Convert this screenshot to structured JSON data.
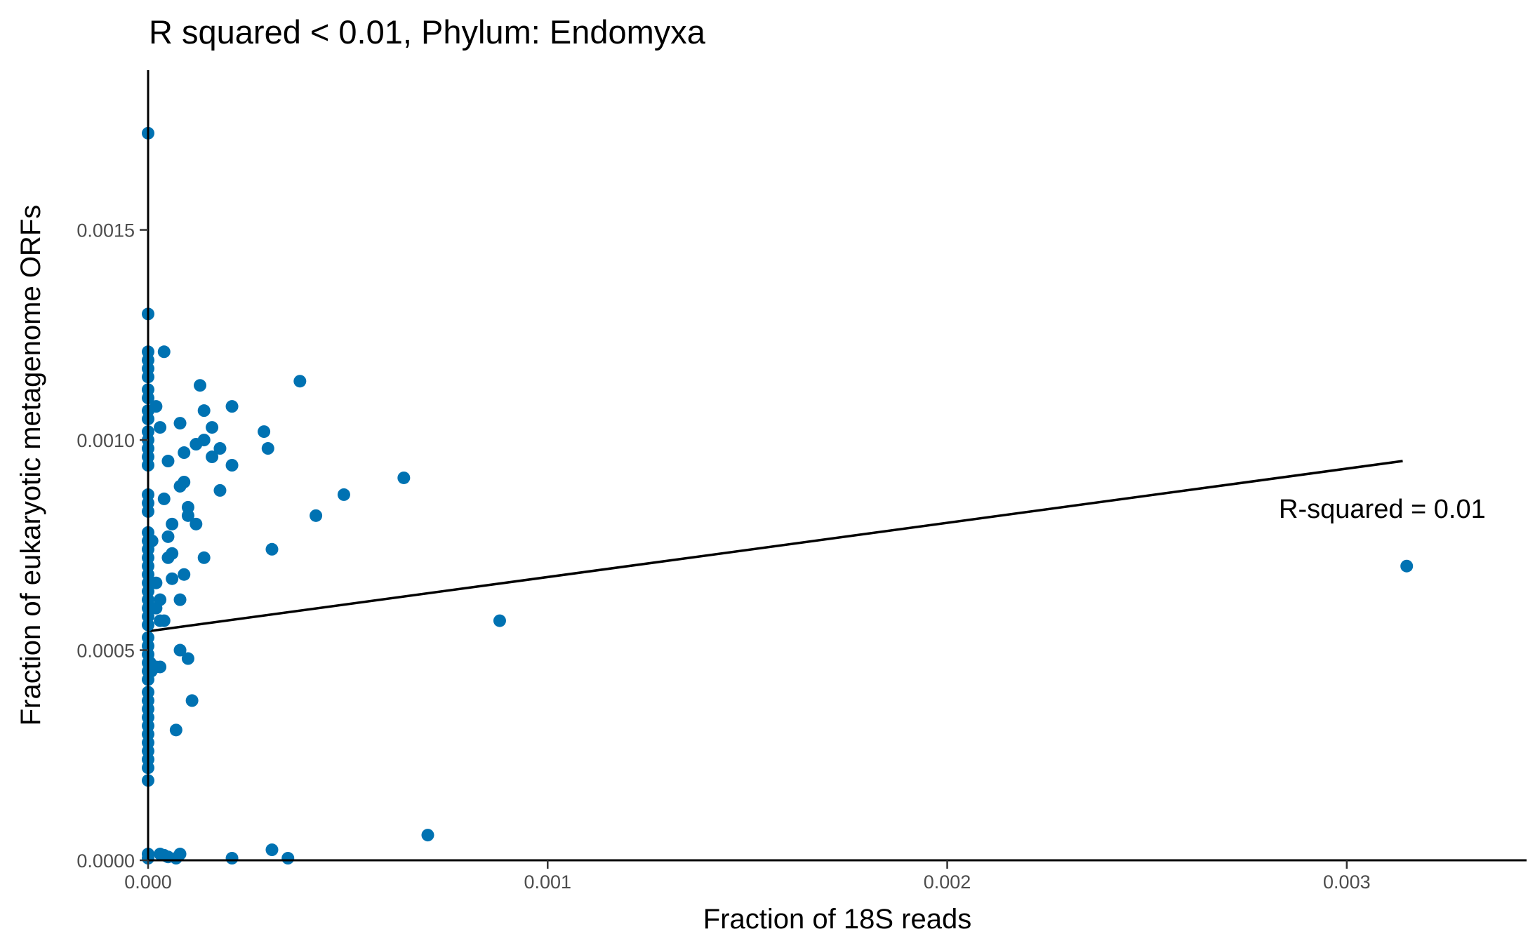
{
  "chart_data": {
    "type": "scatter",
    "title": "R squared < 0.01, Phylum:  Endomyxa",
    "xlabel": "Fraction of 18S reads",
    "ylabel": "Fraction of eukaryotic metagenome ORFs",
    "xlim": [
      0,
      0.00345
    ],
    "ylim": [
      0,
      0.00188
    ],
    "x_ticks": [
      0,
      0.001,
      0.002,
      0.003
    ],
    "x_tick_labels": [
      "0.000",
      "0.001",
      "0.002",
      "0.003"
    ],
    "y_ticks": [
      0,
      0.0005,
      0.001,
      0.0015
    ],
    "y_tick_labels": [
      "0.0000",
      "0.0005",
      "0.0010",
      "0.0015"
    ],
    "grid": false,
    "point_color": "#0072B2",
    "fit_line": {
      "x": [
        0,
        0.00314
      ],
      "y": [
        0.000545,
        0.00095
      ],
      "color": "#000000"
    },
    "annotation": {
      "text": "R-squared =  0.01",
      "x": 0.00283,
      "y": 0.000815
    },
    "points": [
      [
        0,
        0.00173
      ],
      [
        0,
        0.0013
      ],
      [
        0,
        0.00121
      ],
      [
        0,
        0.00119
      ],
      [
        0,
        0.00117
      ],
      [
        0,
        0.00115
      ],
      [
        0,
        0.00112
      ],
      [
        0,
        0.0011
      ],
      [
        0,
        0.00107
      ],
      [
        0,
        0.00105
      ],
      [
        0,
        0.00102
      ],
      [
        0,
        0.001
      ],
      [
        0,
        0.00098
      ],
      [
        0,
        0.00096
      ],
      [
        0,
        0.00094
      ],
      [
        0,
        0.00087
      ],
      [
        0,
        0.00085
      ],
      [
        0,
        0.00083
      ],
      [
        0,
        0.00078
      ],
      [
        0,
        0.00076
      ],
      [
        0,
        0.00074
      ],
      [
        0,
        0.00072
      ],
      [
        0,
        0.0007
      ],
      [
        0,
        0.00068
      ],
      [
        0,
        0.00066
      ],
      [
        0,
        0.00064
      ],
      [
        0,
        0.00062
      ],
      [
        0,
        0.0006
      ],
      [
        0,
        0.00058
      ],
      [
        0,
        0.00056
      ],
      [
        0,
        0.00053
      ],
      [
        0,
        0.00051
      ],
      [
        0,
        0.00049
      ],
      [
        0,
        0.00047
      ],
      [
        0,
        0.00045
      ],
      [
        0,
        0.00043
      ],
      [
        0,
        0.0004
      ],
      [
        0,
        0.00038
      ],
      [
        0,
        0.00036
      ],
      [
        0,
        0.00034
      ],
      [
        0,
        0.00032
      ],
      [
        0,
        0.0003
      ],
      [
        0,
        0.00028
      ],
      [
        0,
        0.00026
      ],
      [
        0,
        0.00024
      ],
      [
        0,
        0.00022
      ],
      [
        0,
        0.00019
      ],
      [
        0,
        1.5e-05
      ],
      [
        0,
        5e-06
      ],
      [
        5e-06,
        0.00047
      ],
      [
        8e-06,
        0.00045
      ],
      [
        1e-05,
        0.00076
      ],
      [
        2e-05,
        0.00108
      ],
      [
        2e-05,
        0.00066
      ],
      [
        2e-05,
        0.0006
      ],
      [
        2e-05,
        0.00046
      ],
      [
        3e-05,
        0.00103
      ],
      [
        3e-05,
        1.5e-05
      ],
      [
        3e-05,
        0.00062
      ],
      [
        3e-05,
        0.00057
      ],
      [
        3e-05,
        0.00046
      ],
      [
        4e-05,
        0.00086
      ],
      [
        4e-05,
        0.00121
      ],
      [
        4e-05,
        0.00057
      ],
      [
        4e-05,
        1.2e-05
      ],
      [
        5e-05,
        0.00077
      ],
      [
        5e-05,
        0.00095
      ],
      [
        5e-05,
        0.00072
      ],
      [
        5e-05,
        8e-06
      ],
      [
        6e-05,
        0.0008
      ],
      [
        6e-05,
        0.00073
      ],
      [
        6e-05,
        0.00067
      ],
      [
        7e-05,
        0.00031
      ],
      [
        7e-05,
        5e-06
      ],
      [
        8e-05,
        0.00089
      ],
      [
        8e-05,
        0.00104
      ],
      [
        8e-05,
        0.0005
      ],
      [
        8e-05,
        0.00062
      ],
      [
        8e-05,
        1.5e-05
      ],
      [
        9e-05,
        0.00068
      ],
      [
        9e-05,
        0.0009
      ],
      [
        9e-05,
        0.00097
      ],
      [
        0.0001,
        0.00048
      ],
      [
        0.0001,
        0.00084
      ],
      [
        0.0001,
        0.00082
      ],
      [
        0.00011,
        0.00038
      ],
      [
        0.00012,
        0.00099
      ],
      [
        0.00012,
        0.0008
      ],
      [
        0.00013,
        0.00113
      ],
      [
        0.00014,
        0.00107
      ],
      [
        0.00014,
        0.00072
      ],
      [
        0.00014,
        0.001
      ],
      [
        0.00016,
        0.00096
      ],
      [
        0.00016,
        0.00103
      ],
      [
        0.00018,
        0.00088
      ],
      [
        0.00018,
        0.00098
      ],
      [
        0.00021,
        0.00094
      ],
      [
        0.00021,
        0.00108
      ],
      [
        0.00021,
        5e-06
      ],
      [
        0.00029,
        0.00102
      ],
      [
        0.0003,
        0.00098
      ],
      [
        0.00031,
        0.00074
      ],
      [
        0.00031,
        2.5e-05
      ],
      [
        0.00035,
        5e-06
      ],
      [
        0.00038,
        0.00114
      ],
      [
        0.00042,
        0.00082
      ],
      [
        0.00049,
        0.00087
      ],
      [
        0.00064,
        0.00091
      ],
      [
        0.0007,
        6e-05
      ],
      [
        0.00088,
        0.00057
      ],
      [
        0.00315,
        0.0007
      ]
    ]
  }
}
